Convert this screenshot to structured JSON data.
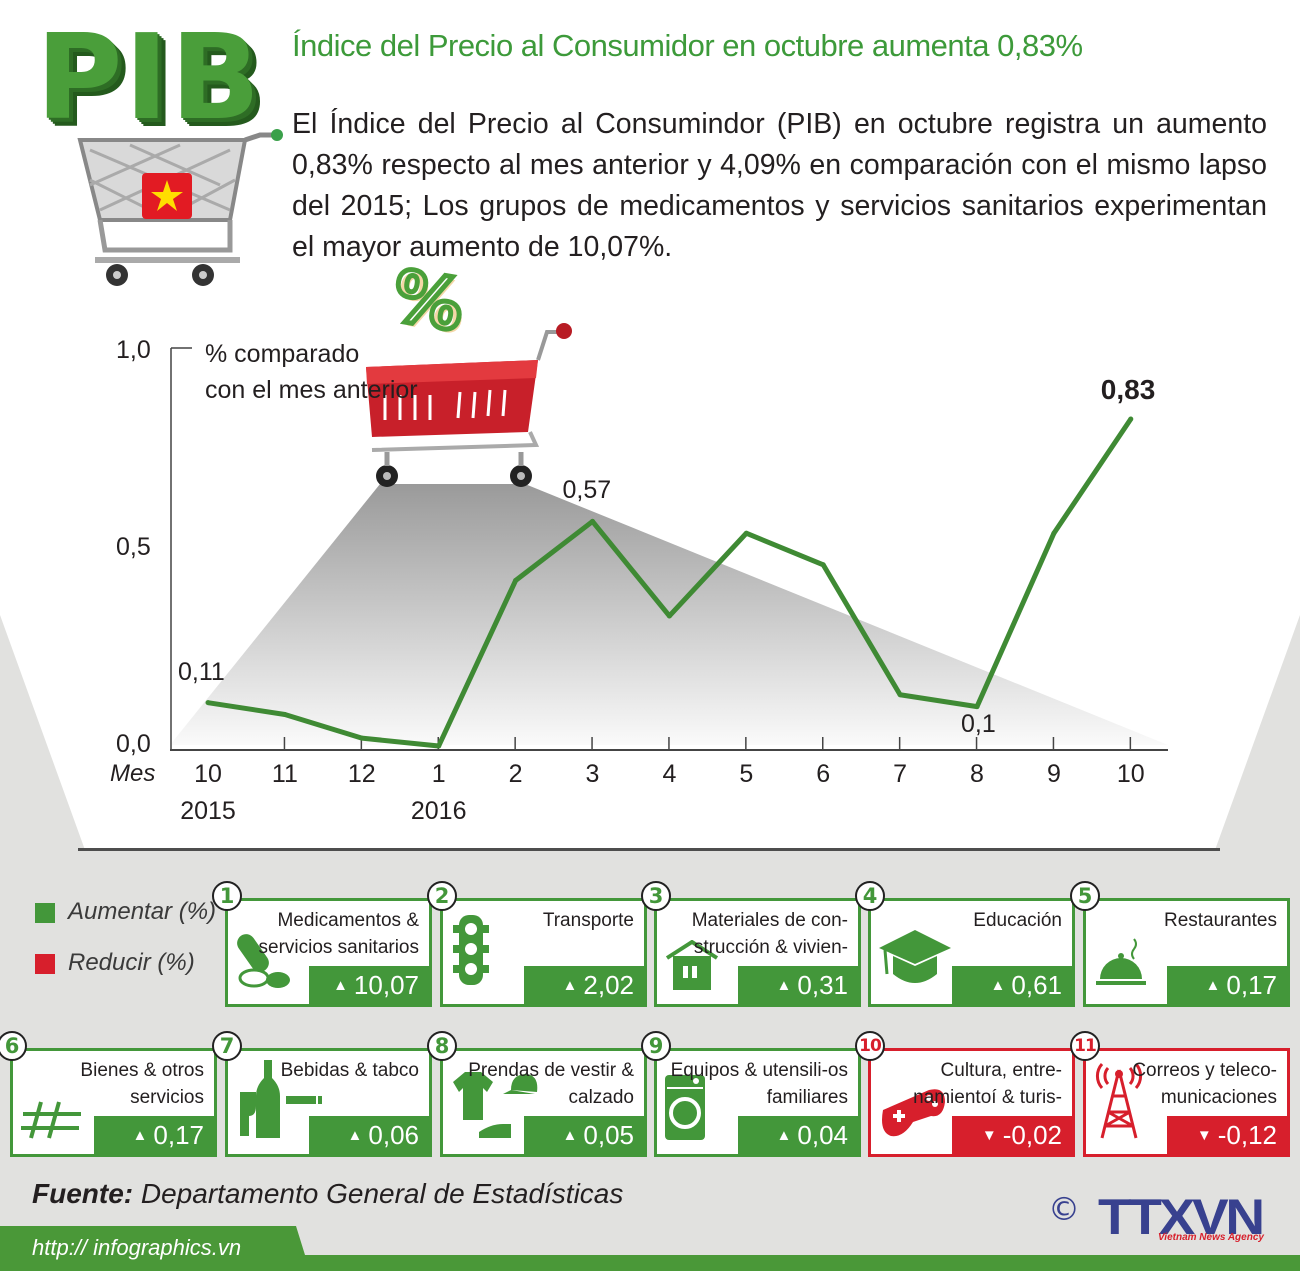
{
  "header": {
    "logo_text": "PIB",
    "title": "Índice del Precio al Consumidor en octubre aumenta 0,83%",
    "description": "El Índice del Precio al Consumindor (PIB) en octubre registra un aumento 0,83% respecto al mes anterior y 4,09% en comparación con el mismo lapso del 2015; Los grupos de medicamentos y servicios sanitarios experimentan el mayor aumento de 10,07%."
  },
  "chart_data": {
    "type": "line",
    "ylabel": "% comparado con el mes anterior",
    "ylabel_lines": [
      "% comparado",
      "con el mes anterior"
    ],
    "xlabel": "Mes",
    "ylim": [
      0,
      1.0
    ],
    "yticks": [
      "1,0",
      "0,5",
      "0,0"
    ],
    "yticks_values": [
      1.0,
      0.5,
      0.0
    ],
    "categories": [
      "10",
      "11",
      "12",
      "1",
      "2",
      "3",
      "4",
      "5",
      "6",
      "7",
      "8",
      "9",
      "10"
    ],
    "year_labels": [
      {
        "index": 0,
        "label": "2015"
      },
      {
        "index": 3,
        "label": "2016"
      }
    ],
    "values": [
      0.11,
      0.08,
      0.02,
      0.0,
      0.42,
      0.57,
      0.33,
      0.54,
      0.46,
      0.13,
      0.1,
      0.54,
      0.83
    ],
    "data_labels": [
      {
        "index": 0,
        "label": "0,11"
      },
      {
        "index": 5,
        "label": "0,57"
      },
      {
        "index": 10,
        "label": "0,1"
      },
      {
        "index": 12,
        "label": "0,83"
      }
    ],
    "line_color": "#3f8a34",
    "grid": false
  },
  "legend": {
    "increase": {
      "label": "Aumentar (%)",
      "color": "#43973a"
    },
    "decrease": {
      "label": "Reducir (%)",
      "color": "#d71f2c"
    }
  },
  "groups": [
    {
      "num": "1",
      "name": "Medicamentos & servicios sanitarios",
      "value": "10,07",
      "dir": "up",
      "arrow": "▲",
      "icon": "pills-icon"
    },
    {
      "num": "2",
      "name": "Transporte",
      "value": "2,02",
      "dir": "up",
      "arrow": "▲",
      "icon": "traffic-light-icon"
    },
    {
      "num": "3",
      "name": "Materiales de construcción & vivienda",
      "name_display": "Materiales de con-strucción & vivien-",
      "value": "0,31",
      "dir": "up",
      "arrow": "▲",
      "icon": "house-icon"
    },
    {
      "num": "4",
      "name": "Educación",
      "value": "0,61",
      "dir": "up",
      "arrow": "▲",
      "icon": "graduation-cap-icon"
    },
    {
      "num": "5",
      "name": "Restaurantes",
      "value": "0,17",
      "dir": "up",
      "arrow": "▲",
      "icon": "cloche-icon"
    },
    {
      "num": "6",
      "name": "Bienes & otros servicios",
      "value": "0,17",
      "dir": "up",
      "arrow": "▲",
      "icon": "hash-icon"
    },
    {
      "num": "7",
      "name": "Bebidas & tabco",
      "value": "0,06",
      "dir": "up",
      "arrow": "▲",
      "icon": "bottle-cigarette-icon"
    },
    {
      "num": "8",
      "name": "Prendas de vestir & calzado",
      "value": "0,05",
      "dir": "up",
      "arrow": "▲",
      "icon": "clothing-icon"
    },
    {
      "num": "9",
      "name": "Equipos & utensilios familiares",
      "name_display": "Equipos & utensili-os familiares",
      "value": "0,04",
      "dir": "up",
      "arrow": "▲",
      "icon": "washing-machine-icon"
    },
    {
      "num": "10",
      "name": "Cultura, entrenamientoí & turismo",
      "name_display": "Cultura, entre-namientoí & turis-",
      "value": "-0,02",
      "dir": "down",
      "arrow": "▼",
      "icon": "gamepad-icon"
    },
    {
      "num": "11",
      "name": "Correos y telecomunicaciones",
      "name_display": "Correos y teleco-municaciones",
      "value": "-0,12",
      "dir": "down",
      "arrow": "▼",
      "icon": "antenna-tower-icon"
    }
  ],
  "footer": {
    "source_label": "Fuente:",
    "source": "Departamento General de Estadísticas",
    "url": "http:// infographics.vn",
    "copyright": "©",
    "agency_logo": "TTXVN",
    "agency_name": "Vietnam News Agency"
  }
}
